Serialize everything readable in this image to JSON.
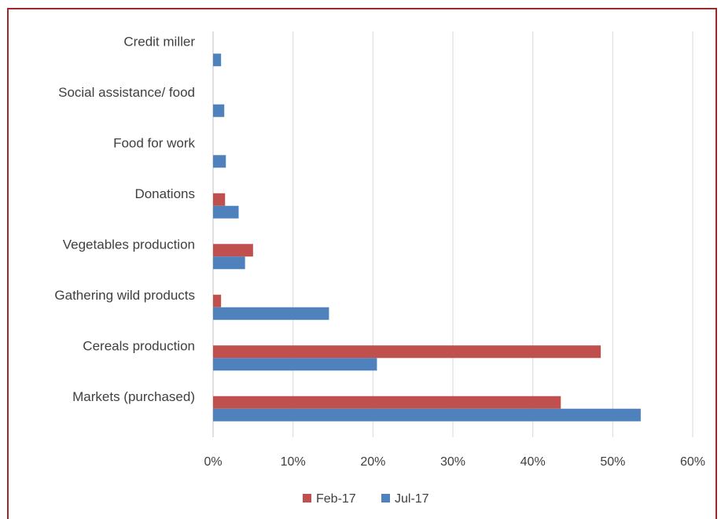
{
  "chart_data": {
    "type": "bar",
    "orientation": "horizontal",
    "categories": [
      "Credit miller",
      "Social assistance/ food",
      "Food for work",
      "Donations",
      "Vegetables production",
      "Gathering wild products",
      "Cereals production",
      "Markets (purchased)"
    ],
    "series": [
      {
        "name": "Feb-17",
        "color": "#c0504d",
        "values": [
          0,
          0,
          0,
          1.5,
          5,
          1,
          48.5,
          43.5
        ]
      },
      {
        "name": "Jul-17",
        "color": "#4f81bd",
        "values": [
          1,
          1.4,
          1.6,
          3.2,
          4,
          14.5,
          20.5,
          53.5
        ]
      }
    ],
    "xlim": [
      0,
      60
    ],
    "xticks": [
      0,
      10,
      20,
      30,
      40,
      50,
      60
    ],
    "tick_labels": [
      "0%",
      "10%",
      "20%",
      "30%",
      "40%",
      "50%",
      "60%"
    ],
    "grid": "vertical",
    "legend": "bottom",
    "title": "",
    "xlabel": "",
    "ylabel": ""
  }
}
